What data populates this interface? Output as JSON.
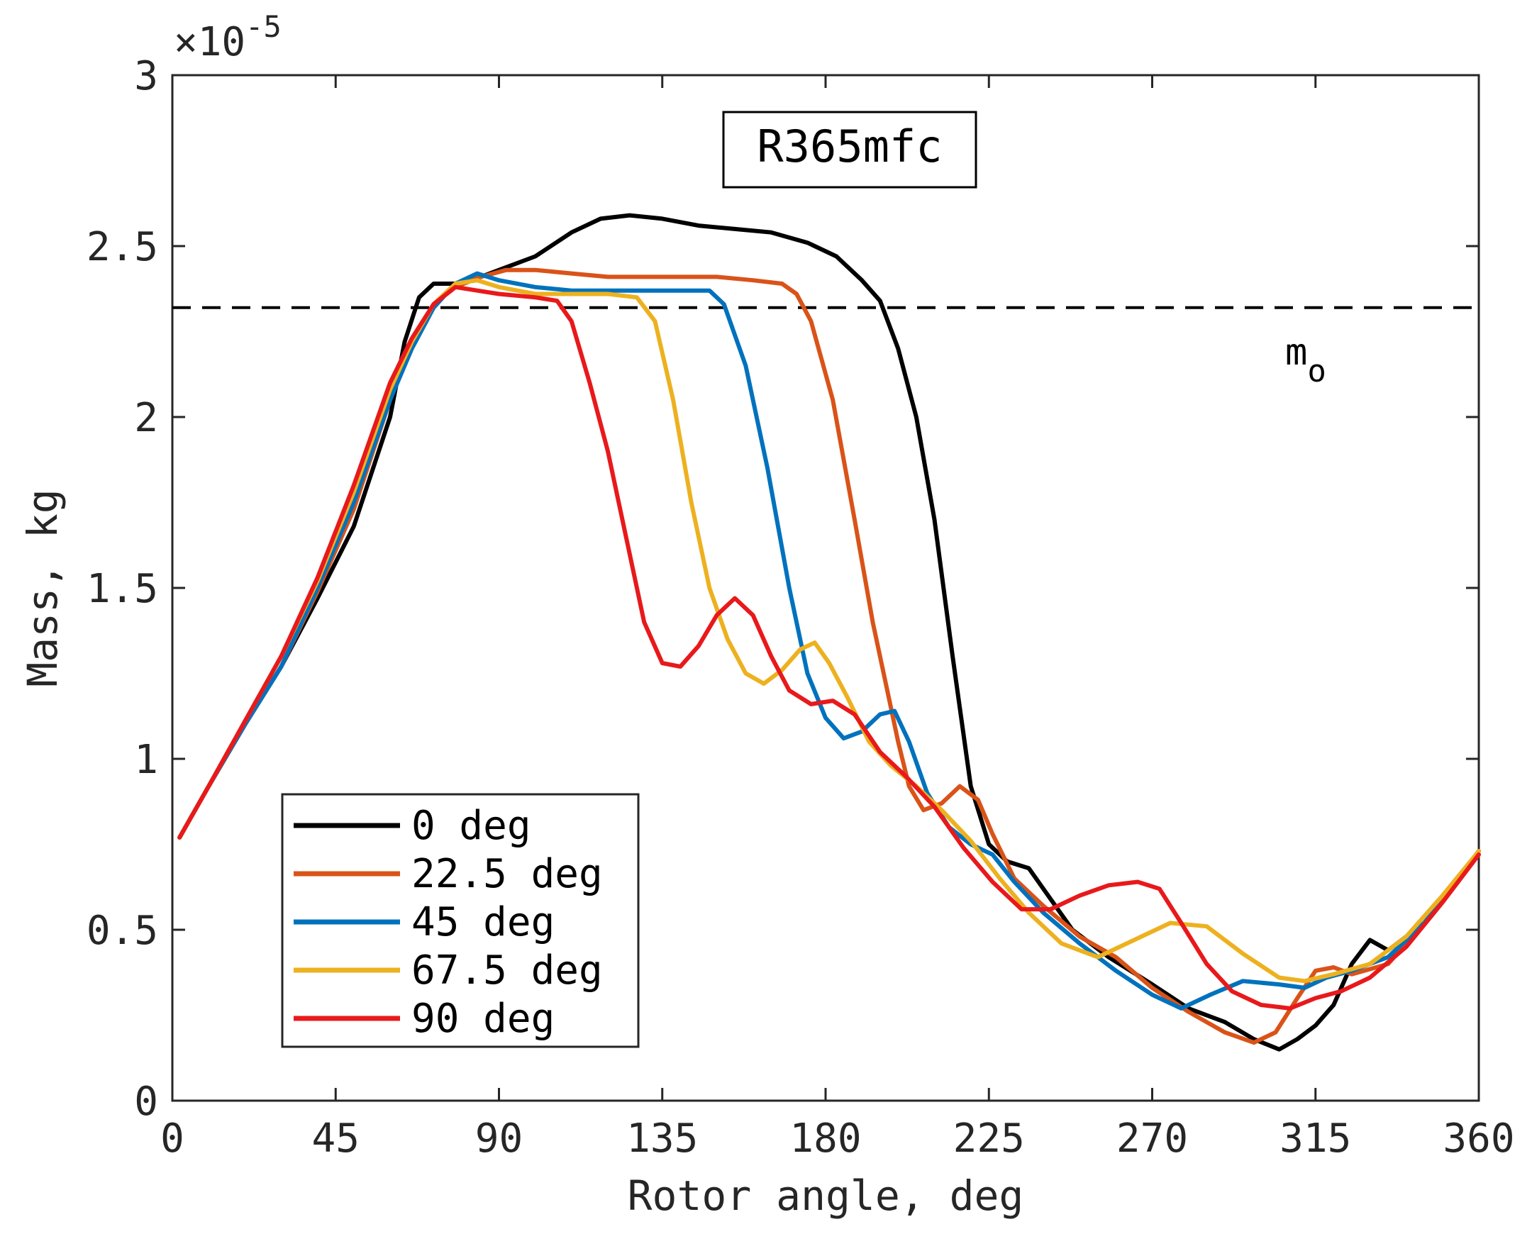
{
  "chart_data": {
    "type": "line",
    "title": "R365mfc",
    "xlabel": "Rotor angle, deg",
    "ylabel": "Mass, kg",
    "y_multiplier": "×10",
    "y_exponent": "-5",
    "xlim": [
      0,
      360
    ],
    "ylim": [
      0,
      3
    ],
    "xticks": [
      "0",
      "45",
      "90",
      "135",
      "180",
      "225",
      "270",
      "315",
      "360"
    ],
    "yticks": [
      "0",
      "0.5",
      "1",
      "1.5",
      "2",
      "2.5",
      "3"
    ],
    "reference_line": {
      "label": "m",
      "subscript": "o",
      "value": 2.32
    },
    "series": [
      {
        "name": "0 deg",
        "color": "#000000",
        "points": [
          [
            2,
            0.77
          ],
          [
            10,
            0.92
          ],
          [
            20,
            1.1
          ],
          [
            30,
            1.27
          ],
          [
            40,
            1.47
          ],
          [
            50,
            1.68
          ],
          [
            60,
            2.0
          ],
          [
            64,
            2.22
          ],
          [
            68,
            2.35
          ],
          [
            72,
            2.39
          ],
          [
            76,
            2.39
          ],
          [
            80,
            2.39
          ],
          [
            85,
            2.41
          ],
          [
            90,
            2.43
          ],
          [
            100,
            2.47
          ],
          [
            110,
            2.54
          ],
          [
            118,
            2.58
          ],
          [
            126,
            2.59
          ],
          [
            135,
            2.58
          ],
          [
            145,
            2.56
          ],
          [
            155,
            2.55
          ],
          [
            165,
            2.54
          ],
          [
            175,
            2.51
          ],
          [
            183,
            2.47
          ],
          [
            190,
            2.4
          ],
          [
            195,
            2.34
          ],
          [
            200,
            2.2
          ],
          [
            205,
            2.0
          ],
          [
            210,
            1.7
          ],
          [
            215,
            1.3
          ],
          [
            220,
            0.92
          ],
          [
            225,
            0.75
          ],
          [
            230,
            0.7
          ],
          [
            236,
            0.68
          ],
          [
            240,
            0.62
          ],
          [
            248,
            0.5
          ],
          [
            258,
            0.42
          ],
          [
            270,
            0.34
          ],
          [
            280,
            0.27
          ],
          [
            290,
            0.23
          ],
          [
            298,
            0.18
          ],
          [
            305,
            0.15
          ],
          [
            310,
            0.18
          ],
          [
            315,
            0.22
          ],
          [
            320,
            0.28
          ],
          [
            325,
            0.4
          ],
          [
            330,
            0.47
          ],
          [
            335,
            0.44
          ],
          [
            345,
            0.52
          ],
          [
            355,
            0.66
          ],
          [
            360,
            0.73
          ]
        ]
      },
      {
        "name": "22.5 deg",
        "color": "#D95319",
        "points": [
          [
            2,
            0.77
          ],
          [
            10,
            0.92
          ],
          [
            20,
            1.1
          ],
          [
            30,
            1.27
          ],
          [
            40,
            1.49
          ],
          [
            50,
            1.73
          ],
          [
            60,
            2.05
          ],
          [
            66,
            2.22
          ],
          [
            72,
            2.33
          ],
          [
            78,
            2.38
          ],
          [
            85,
            2.41
          ],
          [
            92,
            2.43
          ],
          [
            100,
            2.43
          ],
          [
            110,
            2.42
          ],
          [
            120,
            2.41
          ],
          [
            130,
            2.41
          ],
          [
            140,
            2.41
          ],
          [
            150,
            2.41
          ],
          [
            160,
            2.4
          ],
          [
            168,
            2.39
          ],
          [
            172,
            2.36
          ],
          [
            176,
            2.28
          ],
          [
            182,
            2.05
          ],
          [
            188,
            1.7
          ],
          [
            193,
            1.4
          ],
          [
            197,
            1.2
          ],
          [
            200,
            1.05
          ],
          [
            203,
            0.92
          ],
          [
            207,
            0.85
          ],
          [
            212,
            0.87
          ],
          [
            217,
            0.92
          ],
          [
            222,
            0.88
          ],
          [
            226,
            0.78
          ],
          [
            232,
            0.65
          ],
          [
            240,
            0.57
          ],
          [
            250,
            0.48
          ],
          [
            260,
            0.42
          ],
          [
            270,
            0.33
          ],
          [
            280,
            0.26
          ],
          [
            290,
            0.2
          ],
          [
            298,
            0.17
          ],
          [
            304,
            0.2
          ],
          [
            310,
            0.3
          ],
          [
            315,
            0.38
          ],
          [
            320,
            0.39
          ],
          [
            325,
            0.37
          ],
          [
            335,
            0.4
          ],
          [
            345,
            0.52
          ],
          [
            355,
            0.66
          ],
          [
            360,
            0.73
          ]
        ]
      },
      {
        "name": "45 deg",
        "color": "#0072BD",
        "points": [
          [
            2,
            0.77
          ],
          [
            10,
            0.92
          ],
          [
            20,
            1.1
          ],
          [
            30,
            1.27
          ],
          [
            40,
            1.5
          ],
          [
            50,
            1.75
          ],
          [
            60,
            2.05
          ],
          [
            66,
            2.2
          ],
          [
            72,
            2.32
          ],
          [
            78,
            2.39
          ],
          [
            84,
            2.42
          ],
          [
            90,
            2.4
          ],
          [
            100,
            2.38
          ],
          [
            110,
            2.37
          ],
          [
            120,
            2.37
          ],
          [
            130,
            2.37
          ],
          [
            140,
            2.37
          ],
          [
            148,
            2.37
          ],
          [
            152,
            2.33
          ],
          [
            158,
            2.15
          ],
          [
            164,
            1.85
          ],
          [
            170,
            1.5
          ],
          [
            175,
            1.25
          ],
          [
            180,
            1.12
          ],
          [
            185,
            1.06
          ],
          [
            190,
            1.08
          ],
          [
            195,
            1.13
          ],
          [
            199,
            1.14
          ],
          [
            203,
            1.05
          ],
          [
            208,
            0.9
          ],
          [
            214,
            0.8
          ],
          [
            220,
            0.75
          ],
          [
            226,
            0.72
          ],
          [
            232,
            0.64
          ],
          [
            240,
            0.55
          ],
          [
            250,
            0.46
          ],
          [
            260,
            0.38
          ],
          [
            270,
            0.31
          ],
          [
            278,
            0.27
          ],
          [
            286,
            0.31
          ],
          [
            295,
            0.35
          ],
          [
            305,
            0.34
          ],
          [
            312,
            0.33
          ],
          [
            318,
            0.36
          ],
          [
            325,
            0.38
          ],
          [
            335,
            0.42
          ],
          [
            345,
            0.52
          ],
          [
            355,
            0.66
          ],
          [
            360,
            0.73
          ]
        ]
      },
      {
        "name": "67.5 deg",
        "color": "#EDB120",
        "points": [
          [
            2,
            0.77
          ],
          [
            10,
            0.92
          ],
          [
            20,
            1.11
          ],
          [
            30,
            1.3
          ],
          [
            40,
            1.52
          ],
          [
            50,
            1.78
          ],
          [
            60,
            2.08
          ],
          [
            66,
            2.22
          ],
          [
            72,
            2.33
          ],
          [
            78,
            2.39
          ],
          [
            84,
            2.4
          ],
          [
            90,
            2.38
          ],
          [
            100,
            2.36
          ],
          [
            110,
            2.36
          ],
          [
            120,
            2.36
          ],
          [
            128,
            2.35
          ],
          [
            133,
            2.28
          ],
          [
            138,
            2.05
          ],
          [
            143,
            1.75
          ],
          [
            148,
            1.5
          ],
          [
            153,
            1.35
          ],
          [
            158,
            1.25
          ],
          [
            163,
            1.22
          ],
          [
            168,
            1.26
          ],
          [
            173,
            1.32
          ],
          [
            177,
            1.34
          ],
          [
            181,
            1.28
          ],
          [
            186,
            1.18
          ],
          [
            192,
            1.05
          ],
          [
            198,
            0.98
          ],
          [
            205,
            0.92
          ],
          [
            212,
            0.85
          ],
          [
            220,
            0.76
          ],
          [
            228,
            0.65
          ],
          [
            236,
            0.55
          ],
          [
            245,
            0.46
          ],
          [
            255,
            0.42
          ],
          [
            265,
            0.47
          ],
          [
            275,
            0.52
          ],
          [
            285,
            0.51
          ],
          [
            295,
            0.43
          ],
          [
            305,
            0.36
          ],
          [
            312,
            0.35
          ],
          [
            320,
            0.37
          ],
          [
            330,
            0.4
          ],
          [
            340,
            0.48
          ],
          [
            350,
            0.6
          ],
          [
            360,
            0.73
          ]
        ]
      },
      {
        "name": "90 deg",
        "color": "#E8191B",
        "points": [
          [
            2,
            0.77
          ],
          [
            10,
            0.92
          ],
          [
            20,
            1.11
          ],
          [
            30,
            1.3
          ],
          [
            40,
            1.53
          ],
          [
            50,
            1.8
          ],
          [
            60,
            2.1
          ],
          [
            66,
            2.23
          ],
          [
            72,
            2.33
          ],
          [
            78,
            2.38
          ],
          [
            84,
            2.37
          ],
          [
            90,
            2.36
          ],
          [
            100,
            2.35
          ],
          [
            106,
            2.34
          ],
          [
            110,
            2.28
          ],
          [
            115,
            2.1
          ],
          [
            120,
            1.9
          ],
          [
            125,
            1.65
          ],
          [
            130,
            1.4
          ],
          [
            135,
            1.28
          ],
          [
            140,
            1.27
          ],
          [
            145,
            1.33
          ],
          [
            150,
            1.42
          ],
          [
            155,
            1.47
          ],
          [
            160,
            1.42
          ],
          [
            165,
            1.3
          ],
          [
            170,
            1.2
          ],
          [
            176,
            1.16
          ],
          [
            182,
            1.17
          ],
          [
            188,
            1.13
          ],
          [
            195,
            1.02
          ],
          [
            202,
            0.95
          ],
          [
            210,
            0.86
          ],
          [
            218,
            0.74
          ],
          [
            226,
            0.64
          ],
          [
            234,
            0.56
          ],
          [
            242,
            0.56
          ],
          [
            250,
            0.6
          ],
          [
            258,
            0.63
          ],
          [
            266,
            0.64
          ],
          [
            272,
            0.62
          ],
          [
            278,
            0.52
          ],
          [
            285,
            0.4
          ],
          [
            292,
            0.32
          ],
          [
            300,
            0.28
          ],
          [
            308,
            0.27
          ],
          [
            315,
            0.3
          ],
          [
            322,
            0.32
          ],
          [
            330,
            0.36
          ],
          [
            340,
            0.45
          ],
          [
            350,
            0.58
          ],
          [
            360,
            0.72
          ]
        ]
      }
    ],
    "legend": {
      "position": "bottom-left"
    },
    "grid": false
  }
}
